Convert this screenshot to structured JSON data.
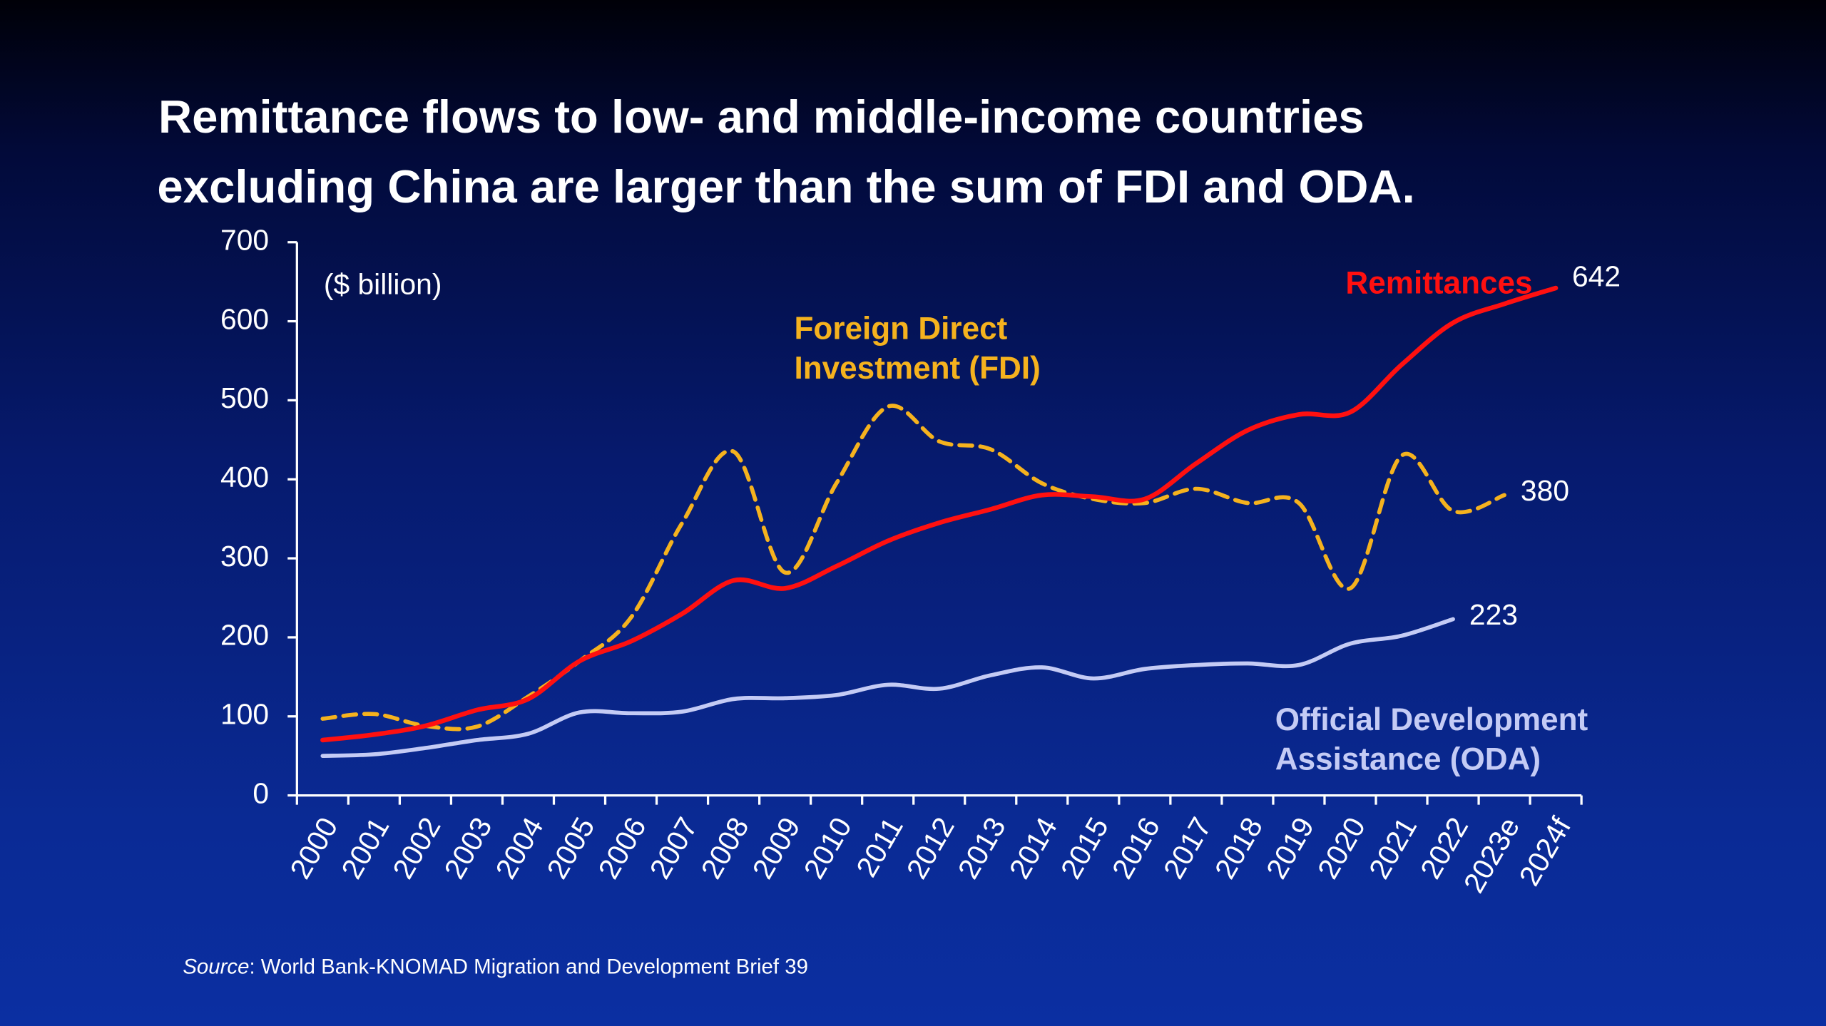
{
  "chart_data": {
    "type": "line",
    "title": [
      "Remittance flows to low- and middle-income countries",
      "excluding China are larger than the sum of FDI and ODA."
    ],
    "y_label": "($ billion)",
    "source": {
      "label": "Source",
      "text": ": World Bank-KNOMAD Migration and Development Brief 39"
    },
    "categories": [
      "2000",
      "2001",
      "2002",
      "2003",
      "2004",
      "2005",
      "2006",
      "2007",
      "2008",
      "2009",
      "2010",
      "2011",
      "2012",
      "2013",
      "2014",
      "2015",
      "2016",
      "2017",
      "2018",
      "2019",
      "2020",
      "2021",
      "2022",
      "2023e",
      "2024f"
    ],
    "ylim": [
      0,
      700
    ],
    "yticks": [
      0,
      100,
      200,
      300,
      400,
      500,
      600,
      700
    ],
    "series": [
      {
        "name": "Remittances",
        "color": "#ff1010",
        "dashed": false,
        "values": [
          70,
          77,
          88,
          108,
          122,
          170,
          195,
          230,
          272,
          262,
          290,
          322,
          345,
          362,
          380,
          378,
          375,
          420,
          462,
          482,
          485,
          545,
          598,
          622,
          642
        ]
      },
      {
        "name": "Foreign Direct Investment (FDI)",
        "color": "#f5b21e",
        "dashed": true,
        "values": [
          97,
          103,
          88,
          87,
          125,
          170,
          225,
          345,
          435,
          282,
          395,
          492,
          448,
          438,
          395,
          375,
          370,
          388,
          370,
          370,
          262,
          430,
          360,
          380,
          null
        ]
      },
      {
        "name": "Official Development Assistance (ODA)",
        "color": "#c4cbf5",
        "dashed": false,
        "values": [
          50,
          52,
          60,
          70,
          78,
          105,
          104,
          106,
          122,
          123,
          127,
          140,
          135,
          152,
          162,
          148,
          160,
          165,
          167,
          165,
          192,
          202,
          223,
          null,
          null
        ]
      }
    ]
  }
}
